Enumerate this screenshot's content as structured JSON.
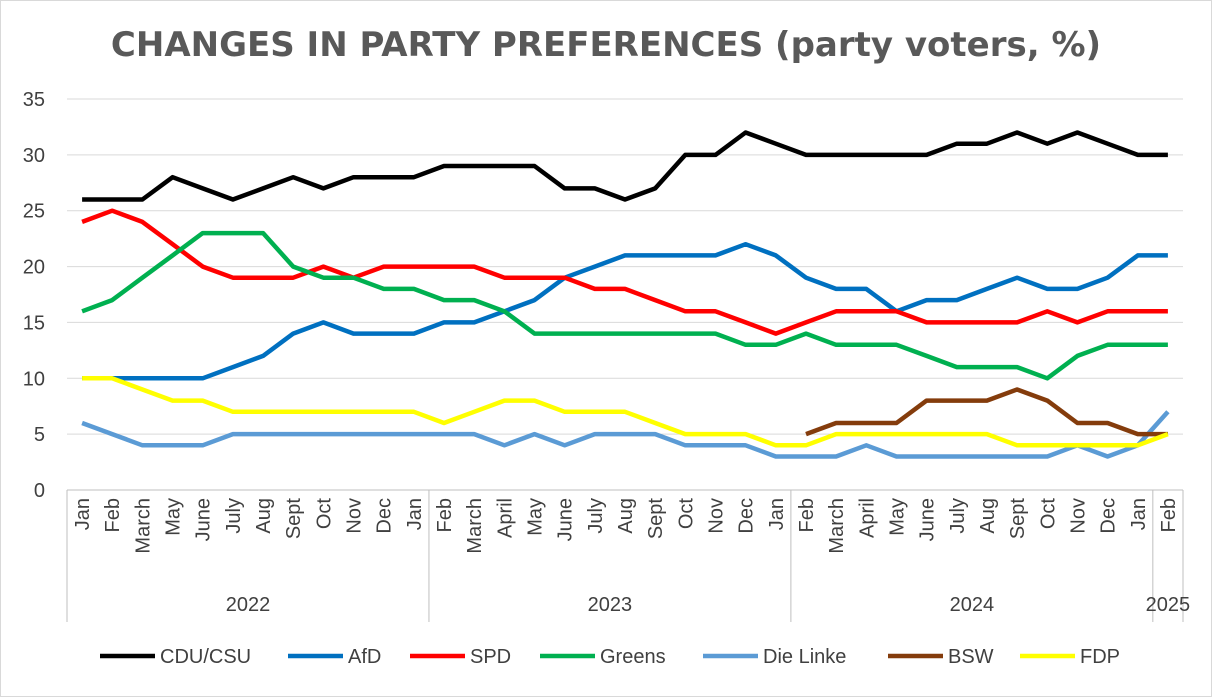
{
  "chart_data": {
    "type": "line",
    "title": "CHANGES IN PARTY PREFERENCES (party voters, %)",
    "xlabel": "",
    "ylabel": "",
    "ylim": [
      0,
      35
    ],
    "yticks": [
      0,
      5,
      10,
      15,
      20,
      25,
      30,
      35
    ],
    "grid": "horizontal",
    "legend_position": "bottom",
    "x_months": [
      "Jan",
      "Feb",
      "March",
      "May",
      "June",
      "July",
      "Aug",
      "Sept",
      "Oct",
      "Nov",
      "Dec",
      "Jan",
      "Feb",
      "March",
      "April",
      "May",
      "June",
      "July",
      "Aug",
      "Sept",
      "Oct",
      "Nov",
      "Dec",
      "Jan",
      "Feb",
      "March",
      "April",
      "May",
      "June",
      "July",
      "Aug",
      "Sept",
      "Oct",
      "Nov",
      "Dec",
      "Jan",
      "Feb"
    ],
    "x_groups": [
      {
        "label": "2022",
        "start": 0,
        "end": 11
      },
      {
        "label": "2023",
        "start": 12,
        "end": 23
      },
      {
        "label": "2024",
        "start": 24,
        "end": 35
      },
      {
        "label": "2025",
        "start": 36,
        "end": 36
      }
    ],
    "series": [
      {
        "name": "CDU/CSU",
        "color": "#000000",
        "values": [
          26,
          26,
          26,
          28,
          27,
          26,
          27,
          28,
          27,
          28,
          28,
          28,
          29,
          29,
          29,
          29,
          27,
          27,
          26,
          27,
          30,
          30,
          32,
          31,
          30,
          30,
          30,
          30,
          30,
          31,
          31,
          32,
          31,
          32,
          31,
          30,
          30
        ]
      },
      {
        "name": "AfD",
        "color": "#0070C0",
        "values": [
          10,
          10,
          10,
          10,
          10,
          11,
          12,
          14,
          15,
          14,
          14,
          14,
          15,
          15,
          16,
          17,
          19,
          20,
          21,
          21,
          21,
          21,
          22,
          21,
          19,
          18,
          18,
          16,
          17,
          17,
          18,
          19,
          18,
          18,
          19,
          21,
          21
        ]
      },
      {
        "name": "SPD",
        "color": "#FF0000",
        "values": [
          24,
          25,
          24,
          22,
          20,
          19,
          19,
          19,
          20,
          19,
          20,
          20,
          20,
          20,
          19,
          19,
          19,
          18,
          18,
          17,
          16,
          16,
          15,
          14,
          15,
          16,
          16,
          16,
          15,
          15,
          15,
          15,
          16,
          15,
          16,
          16,
          16
        ]
      },
      {
        "name": "Greens",
        "color": "#00B050",
        "values": [
          16,
          17,
          19,
          21,
          23,
          23,
          23,
          20,
          19,
          19,
          18,
          18,
          17,
          17,
          16,
          14,
          14,
          14,
          14,
          14,
          14,
          14,
          13,
          13,
          14,
          13,
          13,
          13,
          12,
          11,
          11,
          11,
          10,
          12,
          13,
          13,
          13
        ]
      },
      {
        "name": "Die Linke",
        "color": "#5B9BD5",
        "values": [
          6,
          5,
          4,
          4,
          4,
          5,
          5,
          5,
          5,
          5,
          5,
          5,
          5,
          5,
          4,
          5,
          4,
          5,
          5,
          5,
          4,
          4,
          4,
          3,
          3,
          3,
          4,
          3,
          3,
          3,
          3,
          3,
          3,
          4,
          3,
          4,
          7
        ]
      },
      {
        "name": "BSW",
        "color": "#843C0C",
        "values": [
          null,
          null,
          null,
          null,
          null,
          null,
          null,
          null,
          null,
          null,
          null,
          null,
          null,
          null,
          null,
          null,
          null,
          null,
          null,
          null,
          null,
          null,
          null,
          null,
          5,
          6,
          6,
          6,
          8,
          8,
          8,
          9,
          8,
          6,
          6,
          5,
          5
        ]
      },
      {
        "name": "FDP",
        "color": "#FFFF00",
        "values": [
          10,
          10,
          9,
          8,
          8,
          7,
          7,
          7,
          7,
          7,
          7,
          7,
          6,
          7,
          8,
          8,
          7,
          7,
          7,
          6,
          5,
          5,
          5,
          4,
          4,
          5,
          5,
          5,
          5,
          5,
          5,
          4,
          4,
          4,
          4,
          4,
          5
        ]
      }
    ]
  }
}
